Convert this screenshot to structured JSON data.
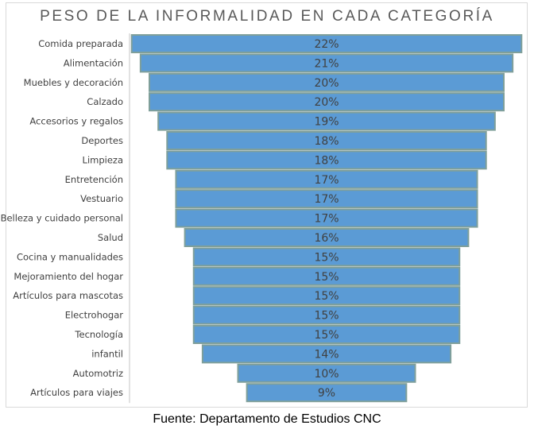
{
  "chart_data": {
    "type": "bar",
    "orientation": "horizontal-funnel",
    "title": "PESO DE LA INFORMALIDAD EN CADA CATEGORÍA",
    "categories": [
      "Comida preparada",
      "Alimentación",
      "Muebles y decoración",
      "Calzado",
      "Accesorios y regalos",
      "Deportes",
      "Limpieza",
      "Entretención",
      "Vestuario",
      "Belleza y cuidado personal",
      "Salud",
      "Cocina y manualidades",
      "Mejoramiento del hogar",
      "Artículos para mascotas",
      "Electrohogar",
      "Tecnología",
      "infantil",
      "Automotriz",
      "Artículos para viajes"
    ],
    "values": [
      22,
      21,
      20,
      20,
      19,
      18,
      18,
      17,
      17,
      17,
      16,
      15,
      15,
      15,
      15,
      15,
      14,
      10,
      9
    ],
    "data_labels": [
      "22%",
      "21%",
      "20%",
      "20%",
      "19%",
      "18%",
      "18%",
      "17%",
      "17%",
      "17%",
      "16%",
      "15%",
      "15%",
      "15%",
      "15%",
      "15%",
      "14%",
      "10%",
      "9%"
    ],
    "bar_color": "#5b9bd5",
    "bar_edge_color": "#7f9f9a",
    "grid": false,
    "legend": "none"
  },
  "footer": {
    "source": "Fuente: Departamento de Estudios CNC"
  }
}
